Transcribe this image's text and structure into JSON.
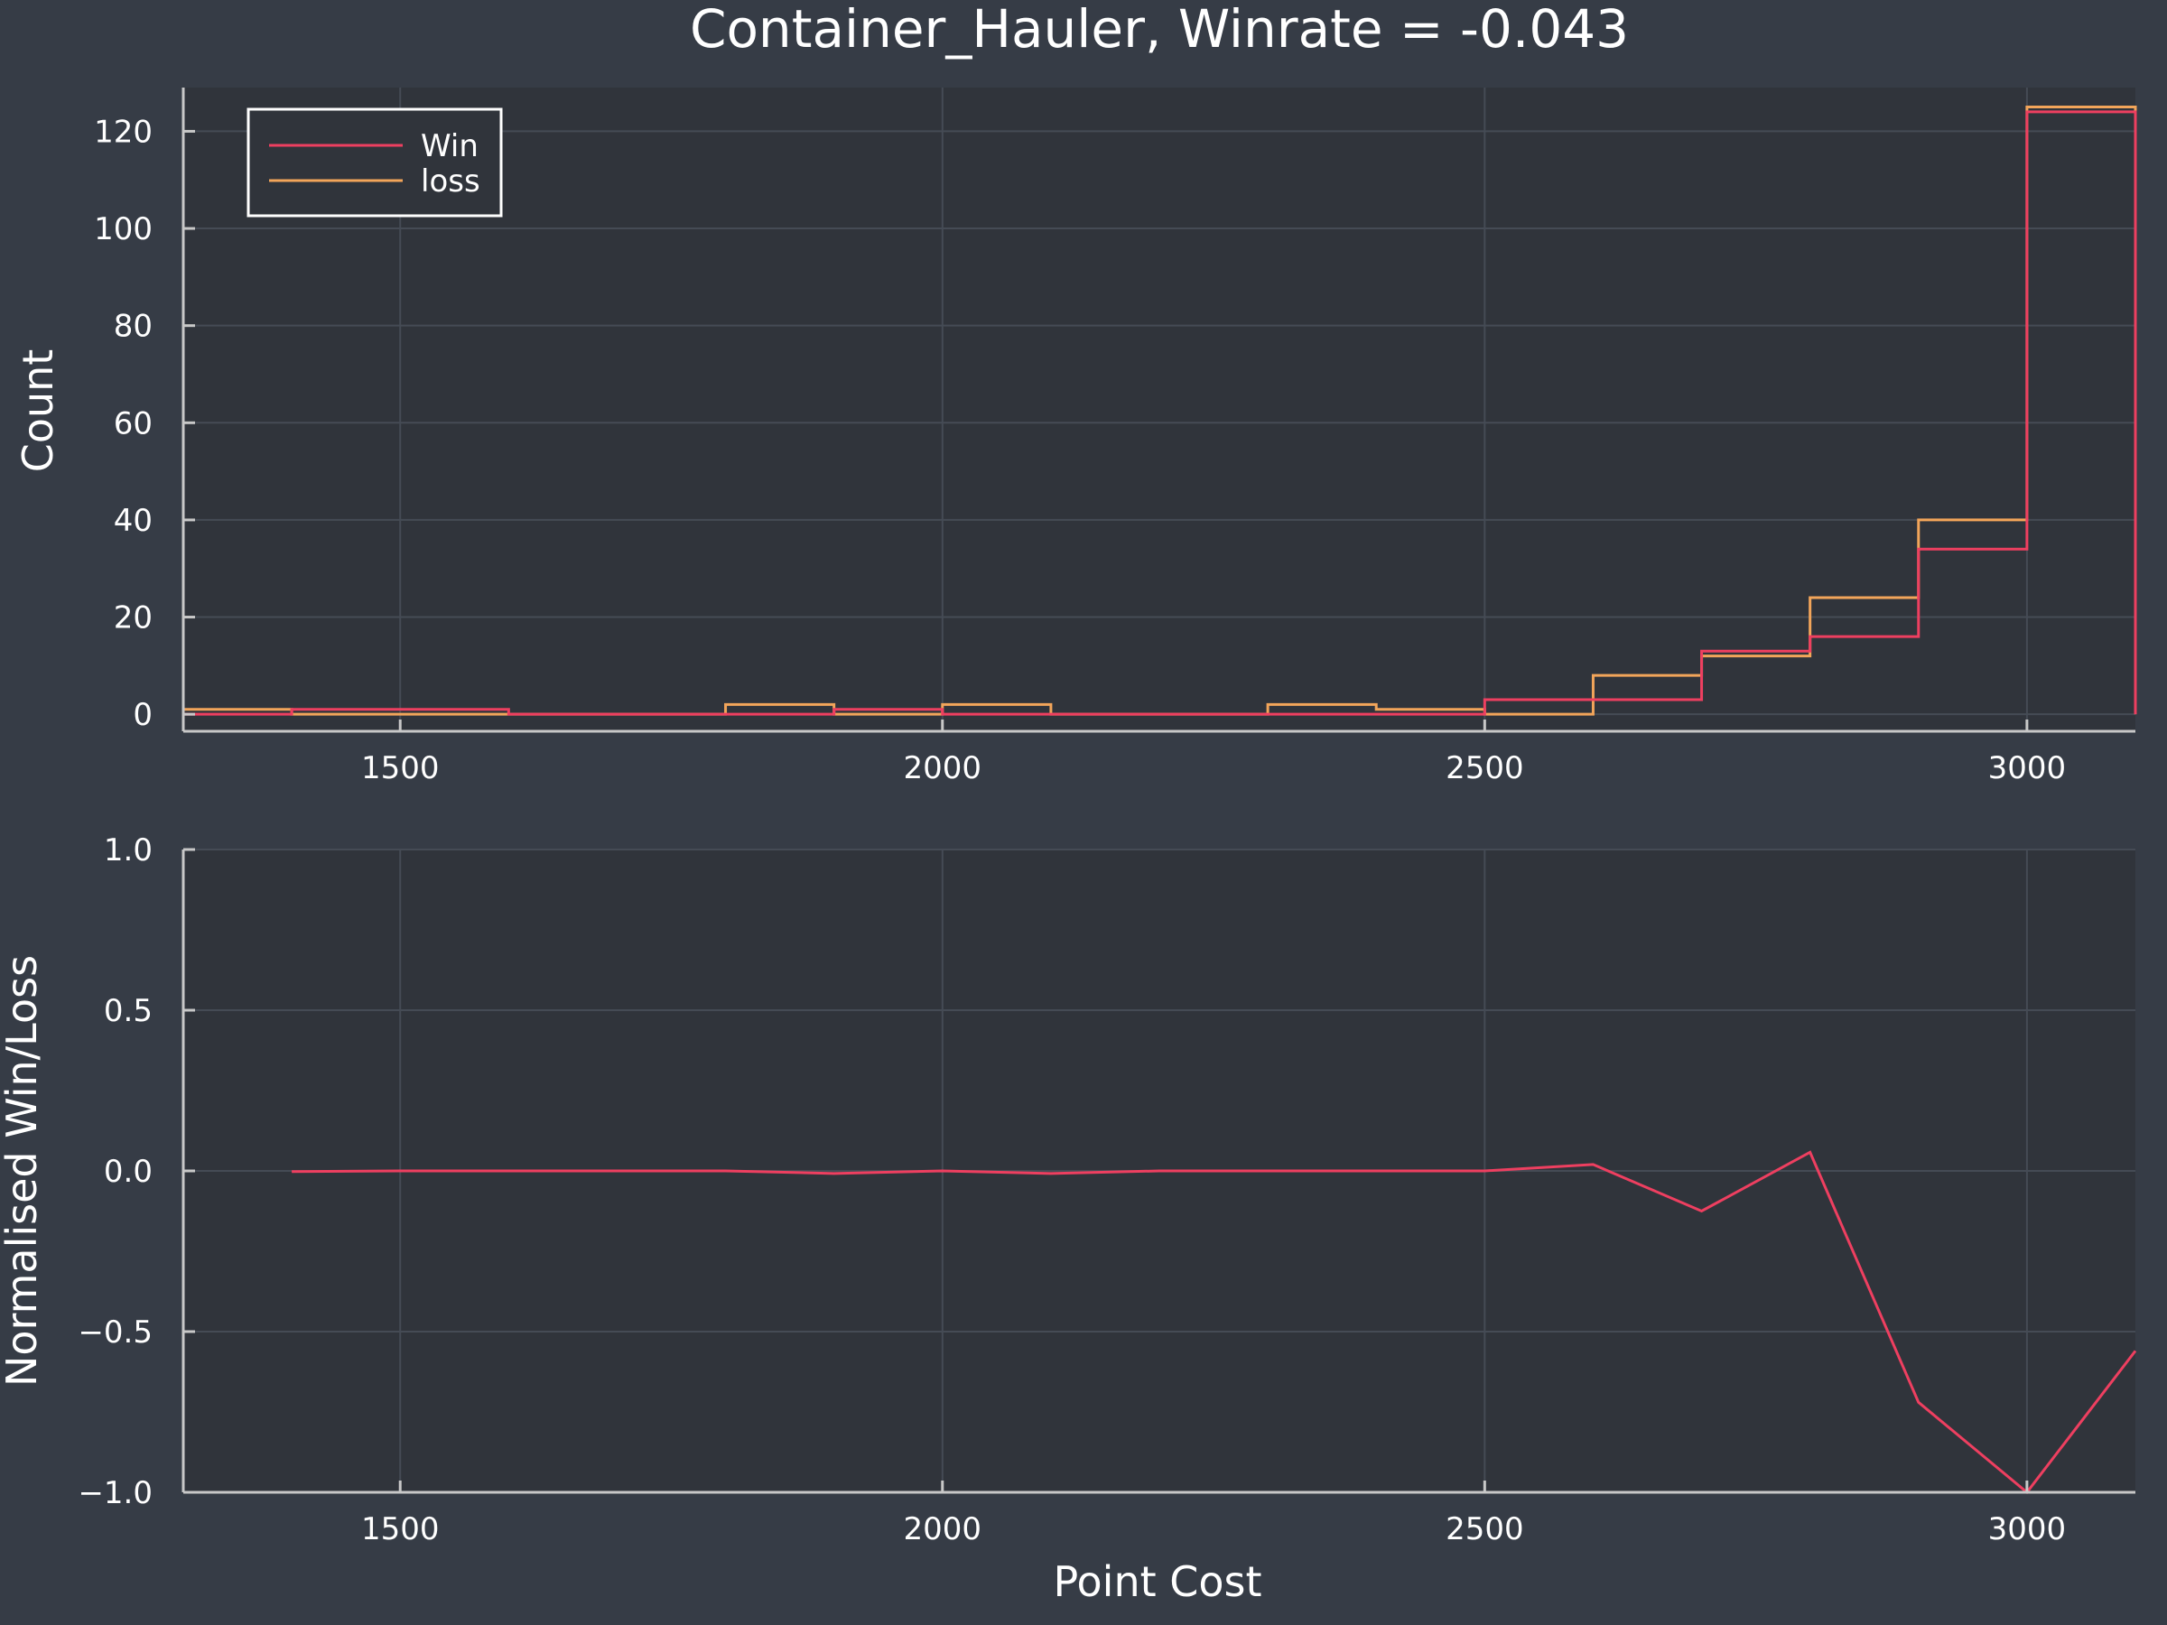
{
  "title": "Container_Hauler, Winrate = -0.043",
  "colors": {
    "background": "#363c46",
    "plot_background": "#30343b",
    "win": "#ee3f60",
    "loss": "#f2a55a"
  },
  "chart_data": [
    {
      "type": "histogram-step",
      "xlabel": "",
      "ylabel": "Count",
      "xlim": [
        1300,
        3100
      ],
      "ylim": [
        -3.5,
        129
      ],
      "xticks": [
        1500,
        2000,
        2500,
        3000
      ],
      "yticks": [
        0,
        20,
        40,
        60,
        80,
        100,
        120
      ],
      "grid": true,
      "legend_position": "top-left",
      "bin_edges": [
        1300,
        1400,
        1500,
        1600,
        1700,
        1800,
        1900,
        2000,
        2100,
        2200,
        2300,
        2400,
        2500,
        2600,
        2700,
        2800,
        2900,
        3000,
        3100
      ],
      "series": [
        {
          "name": "Win",
          "values": [
            0,
            1,
            1,
            0,
            0,
            0,
            1,
            0,
            0,
            0,
            0,
            0,
            3,
            3,
            13,
            16,
            34,
            124
          ]
        },
        {
          "name": "loss",
          "values": [
            1,
            0,
            0,
            0,
            0,
            2,
            0,
            2,
            0,
            0,
            2,
            1,
            0,
            8,
            12,
            24,
            40,
            125
          ]
        }
      ]
    },
    {
      "type": "line",
      "xlabel": "Point Cost",
      "ylabel": "Normalised Win/Loss",
      "xlim": [
        1300,
        3100
      ],
      "ylim": [
        -1.0,
        1.0
      ],
      "xticks": [
        1500,
        2000,
        2500,
        3000
      ],
      "yticks": [
        {
          "value": 1.0,
          "label": "1.0"
        },
        {
          "value": 0.5,
          "label": "0.5"
        },
        {
          "value": 0.0,
          "label": "0.0"
        },
        {
          "value": -0.5,
          "label": "−0.5"
        },
        {
          "value": -1.0,
          "label": "−1.0"
        }
      ],
      "grid": true,
      "x": [
        1400,
        1500,
        1600,
        1700,
        1800,
        1900,
        2000,
        2100,
        2200,
        2300,
        2400,
        2500,
        2600,
        2700,
        2800,
        2900,
        3000,
        3100
      ],
      "values": [
        -0.002,
        0.0,
        0.0,
        0.0,
        0.0,
        -0.008,
        0.0,
        -0.008,
        0.0,
        0.0,
        0.0,
        0.0,
        0.02,
        -0.125,
        0.058,
        -0.72,
        -1.0,
        -0.56
      ]
    }
  ]
}
